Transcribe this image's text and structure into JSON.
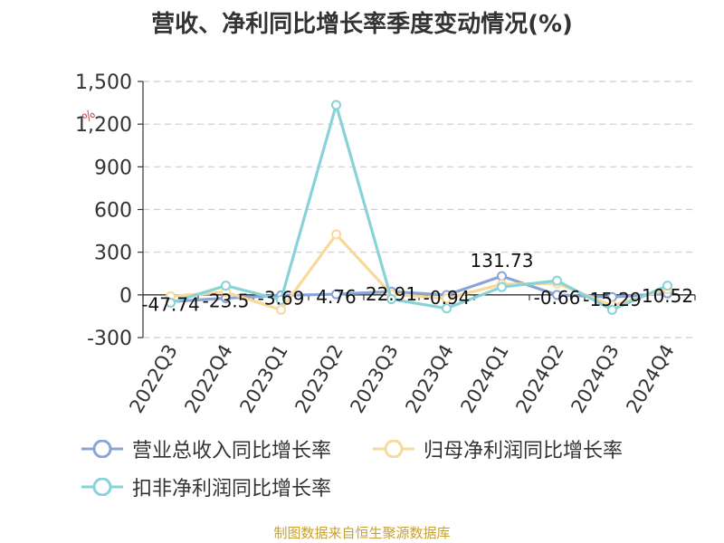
{
  "title": "营收、净利同比增长率季度变动情况(%)",
  "source": "制图数据来自恒生聚源数据库",
  "y_unit": "%",
  "colors": {
    "revenue": "#8aa4d6",
    "net_profit": "#f8d99a",
    "deducted": "#88d3d8",
    "axis": "#333333",
    "grid": "#cccccc"
  },
  "legend": {
    "revenue_label": "营业总收入同比增长率",
    "net_profit_label": "归母净利润同比增长率",
    "deducted_label": "扣非净利润同比增长率"
  },
  "chart_data": {
    "type": "line",
    "title": "营收、净利同比增长率季度变动情况(%)",
    "categories": [
      "2022Q3",
      "2022Q4",
      "2023Q1",
      "2023Q2",
      "2023Q3",
      "2023Q4",
      "2024Q1",
      "2024Q2",
      "2024Q3",
      "2024Q4"
    ],
    "ylim": [
      -300,
      1500
    ],
    "yticks": [
      -300,
      0,
      300,
      600,
      900,
      1200,
      1500
    ],
    "ytick_labels": [
      "-300",
      "0",
      "300",
      "600",
      "900",
      "1,200",
      "1,500"
    ],
    "grid": true,
    "legend_position": "bottom",
    "series": [
      {
        "name": "营业总收入同比增长率",
        "values": [
          -47.74,
          -23.5,
          -3.69,
          4.76,
          22.91,
          -0.94,
          131.73,
          -0.66,
          -15.29,
          10.52
        ],
        "labels": [
          "-47.74",
          "-23.5",
          "-3.69",
          "4.76",
          "22.91",
          "-0.94",
          "131.73",
          "-0.66",
          "-15.29",
          "10.52"
        ]
      },
      {
        "name": "归母净利润同比增长率",
        "values": [
          -10,
          20,
          -105,
          425,
          5,
          -25,
          75,
          80,
          -75,
          40
        ]
      },
      {
        "name": "扣非净利润同比增长率",
        "values": [
          -55,
          65,
          -35,
          1335,
          -30,
          -95,
          55,
          100,
          -105,
          65
        ]
      }
    ]
  }
}
